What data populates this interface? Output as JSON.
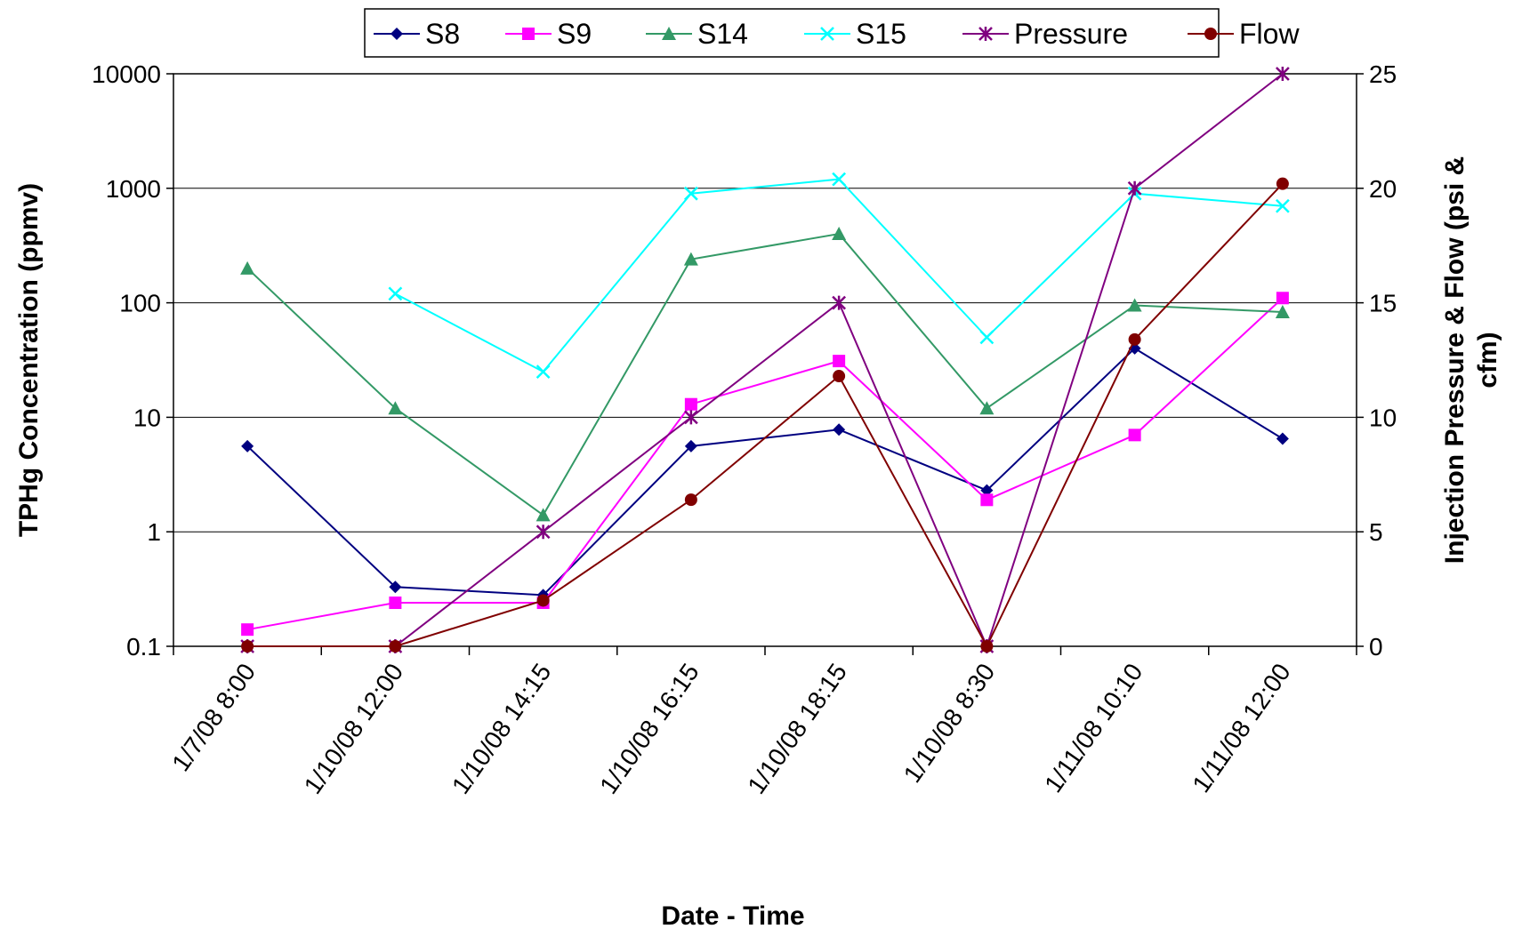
{
  "chart_data": {
    "type": "line",
    "title": "",
    "xlabel": "Date - Time",
    "ylabel": "TPHg Concentration (ppmv)",
    "y2label_line1": "Injection Pressure & Flow (psi &",
    "y2label_line2": "cfm)",
    "categories": [
      "1/7/08 8:00",
      "1/10/08 12:00",
      "1/10/08 14:15",
      "1/10/08 16:15",
      "1/10/08 18:15",
      "1/10/08 8:30",
      "1/11/08 10:10",
      "1/11/08 12:00"
    ],
    "y_scale": "log",
    "ylim": [
      0.1,
      10000
    ],
    "y_ticks": [
      "0.1",
      "1",
      "10",
      "100",
      "1000",
      "10000"
    ],
    "y2lim": [
      0,
      25
    ],
    "y2_ticks": [
      "0",
      "5",
      "10",
      "15",
      "20",
      "25"
    ],
    "grid": "horizontal",
    "legend_position": "top",
    "series": [
      {
        "name": "S8",
        "axis": "left",
        "color": "#000080",
        "marker": "diamond",
        "values": [
          5.6,
          0.33,
          0.28,
          5.6,
          7.8,
          2.3,
          40,
          6.5
        ]
      },
      {
        "name": "S9",
        "axis": "left",
        "color": "#FF00FF",
        "marker": "square",
        "values": [
          0.14,
          0.24,
          0.24,
          13,
          31,
          1.9,
          7,
          110
        ]
      },
      {
        "name": "S14",
        "axis": "left",
        "color": "#339966",
        "marker": "triangle",
        "values": [
          200,
          12,
          1.4,
          240,
          400,
          12,
          95,
          83
        ]
      },
      {
        "name": "S15",
        "axis": "left",
        "color": "#00FFFF",
        "marker": "x",
        "values": [
          null,
          120,
          25,
          900,
          1200,
          50,
          900,
          700
        ]
      },
      {
        "name": "Pressure",
        "axis": "right",
        "color": "#800080",
        "marker": "star",
        "values": [
          0,
          0,
          5,
          10,
          15,
          0,
          20,
          25
        ]
      },
      {
        "name": "Flow",
        "axis": "right",
        "color": "#800000",
        "marker": "circle",
        "values": [
          0,
          0,
          2,
          6.4,
          11.8,
          0,
          13.4,
          20.2
        ]
      }
    ]
  }
}
